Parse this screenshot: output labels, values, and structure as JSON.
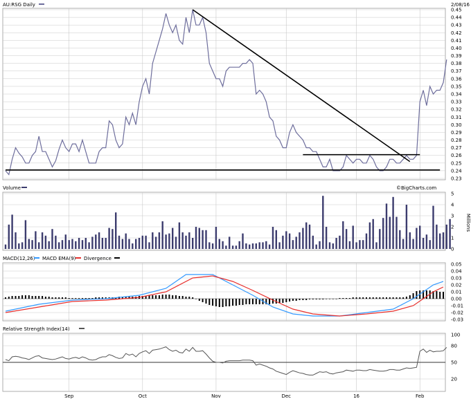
{
  "header": {
    "ticker": "AU:RSG Daily",
    "date": "2/08/16",
    "watermark": "©BigCharts.com"
  },
  "colors": {
    "price": "#6d6d9c",
    "volume_bar": "#3c3c6e",
    "macd": "#3399ff",
    "ema": "#e8302d",
    "divergence": "#000000",
    "rsi": "#555555",
    "trendline": "#000000",
    "grid": "#c8c8c8"
  },
  "x_axis": {
    "months": [
      {
        "label": "Sep",
        "day": 19
      },
      {
        "label": "Oct",
        "day": 41
      },
      {
        "label": "Nov",
        "day": 63
      },
      {
        "label": "Dec",
        "day": 84
      },
      {
        "label": "16",
        "day": 105
      },
      {
        "label": "Feb",
        "day": 124
      }
    ]
  },
  "chart_data": [
    {
      "type": "line",
      "name": "price",
      "title": "AU:RSG Daily",
      "ylim": [
        0.23,
        0.45
      ],
      "yticks": [
        0.23,
        0.24,
        0.25,
        0.26,
        0.27,
        0.28,
        0.29,
        0.3,
        0.31,
        0.32,
        0.33,
        0.34,
        0.35,
        0.36,
        0.37,
        0.38,
        0.39,
        0.4,
        0.41,
        0.42,
        0.43,
        0.44,
        0.45
      ],
      "values": [
        0.24,
        0.235,
        0.255,
        0.27,
        0.263,
        0.258,
        0.25,
        0.25,
        0.26,
        0.265,
        0.285,
        0.265,
        0.265,
        0.255,
        0.245,
        0.253,
        0.268,
        0.28,
        0.27,
        0.265,
        0.275,
        0.275,
        0.265,
        0.28,
        0.265,
        0.25,
        0.25,
        0.25,
        0.265,
        0.27,
        0.27,
        0.305,
        0.3,
        0.28,
        0.27,
        0.275,
        0.31,
        0.3,
        0.315,
        0.3,
        0.33,
        0.35,
        0.36,
        0.34,
        0.38,
        0.395,
        0.41,
        0.425,
        0.445,
        0.43,
        0.42,
        0.43,
        0.41,
        0.405,
        0.44,
        0.42,
        0.45,
        0.43,
        0.43,
        0.44,
        0.42,
        0.38,
        0.37,
        0.36,
        0.36,
        0.35,
        0.37,
        0.375,
        0.375,
        0.375,
        0.375,
        0.38,
        0.38,
        0.385,
        0.38,
        0.34,
        0.345,
        0.34,
        0.33,
        0.31,
        0.305,
        0.285,
        0.28,
        0.27,
        0.27,
        0.29,
        0.3,
        0.29,
        0.285,
        0.28,
        0.27,
        0.27,
        0.265,
        0.265,
        0.255,
        0.245,
        0.245,
        0.255,
        0.24,
        0.24,
        0.24,
        0.245,
        0.26,
        0.255,
        0.25,
        0.255,
        0.255,
        0.25,
        0.25,
        0.26,
        0.255,
        0.245,
        0.24,
        0.24,
        0.245,
        0.255,
        0.255,
        0.25,
        0.25,
        0.255,
        0.26,
        0.255,
        0.255,
        0.26,
        0.33,
        0.345,
        0.325,
        0.35,
        0.34,
        0.345,
        0.345,
        0.355,
        0.385
      ],
      "trendlines": [
        {
          "points": [
            [
              0,
              0.241
            ],
            [
              130,
              0.241
            ]
          ]
        },
        {
          "points": [
            [
              56,
              0.45
            ],
            [
              121,
              0.252
            ]
          ]
        },
        {
          "points": [
            [
              89,
              0.261
            ],
            [
              124,
              0.261
            ]
          ]
        }
      ]
    },
    {
      "type": "bar",
      "name": "volume",
      "title": "Volume",
      "ylabel": "Millions",
      "ylim": [
        0,
        5
      ],
      "yticks": [
        0,
        1,
        2,
        3,
        4,
        5
      ],
      "values": [
        0.4,
        2.2,
        3.1,
        1.5,
        0.5,
        0.6,
        2.6,
        0.9,
        0.8,
        1.6,
        0.6,
        1.5,
        1.2,
        0.7,
        1.8,
        1.2,
        0.6,
        0.8,
        1.3,
        0.8,
        0.9,
        0.7,
        1.0,
        0.8,
        1.0,
        0.6,
        1.1,
        1.3,
        1.5,
        1.0,
        1.0,
        1.9,
        1.8,
        3.3,
        1.2,
        0.9,
        1.4,
        0.9,
        0.5,
        0.9,
        1.0,
        1.2,
        1.2,
        0.6,
        1.5,
        1.1,
        1.5,
        2.5,
        1.3,
        1.4,
        1.9,
        1.1,
        2.4,
        1.5,
        1.2,
        1.5,
        1.0,
        2.0,
        1.9,
        1.7,
        1.7,
        0.6,
        0.5,
        2.0,
        0.9,
        0.7,
        0.3,
        1.1,
        0.3,
        0.3,
        0.7,
        1.4,
        0.5,
        0.4,
        0.5,
        0.5,
        0.6,
        0.6,
        0.7,
        0.4,
        2.0,
        1.7,
        0.6,
        1.2,
        1.6,
        1.4,
        0.8,
        1.1,
        1.5,
        1.9,
        2.4,
        2.2,
        1.2,
        0.4,
        0.7,
        4.8,
        2.0,
        0.6,
        0.5,
        1.0,
        1.2,
        2.5,
        1.8,
        0.7,
        2.1,
        0.6,
        0.8,
        0.8,
        1.4,
        2.4,
        2.7,
        0.6,
        1.8,
        2.8,
        4.1,
        2.9,
        4.7,
        2.9,
        1.7,
        0.9,
        4.0,
        1.5,
        0.9,
        1.9,
        2.1,
        1.0,
        1.3,
        0.8,
        3.9,
        2.2,
        1.4,
        1.5,
        2.2,
        2.7
      ],
      "trendlines": []
    },
    {
      "type": "line",
      "name": "macd",
      "title": "MACD(12,26)",
      "legend": [
        "MACD(12,26)",
        "MACD EMA(9)",
        "Divergence"
      ],
      "ylim": [
        -0.03,
        0.05
      ],
      "yticks": [
        -0.03,
        -0.02,
        -0.01,
        0.0,
        0.01,
        0.02,
        0.03,
        0.04,
        0.05
      ],
      "ytick_labels": [
        "-0.03",
        "-0.02",
        "-0.01",
        "0.00",
        "0.01",
        "0.02",
        "0.03",
        "0.04",
        "0.05"
      ],
      "series": [
        {
          "name": "MACD(12,26)",
          "key": "macd",
          "points": [
            [
              0,
              -0.018
            ],
            [
              10,
              -0.008
            ],
            [
              20,
              -0.002
            ],
            [
              30,
              0.0
            ],
            [
              40,
              0.005
            ],
            [
              48,
              0.015
            ],
            [
              54,
              0.035
            ],
            [
              62,
              0.035
            ],
            [
              68,
              0.02
            ],
            [
              74,
              0.005
            ],
            [
              80,
              -0.012
            ],
            [
              86,
              -0.022
            ],
            [
              92,
              -0.025
            ],
            [
              100,
              -0.025
            ],
            [
              108,
              -0.02
            ],
            [
              116,
              -0.015
            ],
            [
              122,
              0.0
            ],
            [
              128,
              0.02
            ],
            [
              131,
              0.025
            ]
          ]
        },
        {
          "name": "MACD EMA(9)",
          "key": "ema",
          "points": [
            [
              0,
              -0.02
            ],
            [
              10,
              -0.012
            ],
            [
              20,
              -0.004
            ],
            [
              30,
              -0.002
            ],
            [
              40,
              0.002
            ],
            [
              48,
              0.01
            ],
            [
              56,
              0.03
            ],
            [
              62,
              0.033
            ],
            [
              68,
              0.025
            ],
            [
              74,
              0.012
            ],
            [
              80,
              -0.002
            ],
            [
              86,
              -0.015
            ],
            [
              92,
              -0.022
            ],
            [
              100,
              -0.025
            ],
            [
              108,
              -0.022
            ],
            [
              116,
              -0.018
            ],
            [
              122,
              -0.01
            ],
            [
              128,
              0.01
            ],
            [
              131,
              0.017
            ]
          ]
        }
      ],
      "divergence": [
        0.002,
        0.003,
        0.004,
        0.004,
        0.004,
        0.005,
        0.005,
        0.005,
        0.004,
        0.004,
        0.004,
        0.004,
        0.003,
        0.003,
        0.002,
        0.002,
        0.002,
        0.002,
        0.002,
        0.001,
        0.001,
        0.001,
        0.001,
        0.001,
        0.001,
        0.001,
        0.001,
        0.002,
        0.002,
        0.002,
        0.002,
        0.002,
        0.002,
        0.002,
        0.003,
        0.003,
        0.003,
        0.003,
        0.003,
        0.003,
        0.004,
        0.004,
        0.004,
        0.005,
        0.005,
        0.005,
        0.005,
        0.006,
        0.006,
        0.006,
        0.005,
        0.005,
        0.004,
        0.004,
        0.003,
        0.003,
        0.002,
        0.0,
        -0.003,
        -0.005,
        -0.007,
        -0.009,
        -0.01,
        -0.011,
        -0.012,
        -0.012,
        -0.011,
        -0.011,
        -0.01,
        -0.01,
        -0.009,
        -0.009,
        -0.008,
        -0.008,
        -0.008,
        -0.008,
        -0.008,
        -0.008,
        -0.008,
        -0.008,
        -0.007,
        -0.007,
        -0.006,
        -0.006,
        -0.005,
        -0.004,
        -0.003,
        -0.003,
        -0.002,
        -0.002,
        -0.002,
        -0.001,
        -0.001,
        -0.001,
        -0.001,
        -0.001,
        0.0,
        0.0,
        0.0,
        0.0,
        0.001,
        0.001,
        0.001,
        0.001,
        0.002,
        0.002,
        0.002,
        0.002,
        0.002,
        0.002,
        0.002,
        0.002,
        0.002,
        0.002,
        0.002,
        0.002,
        0.002,
        0.002,
        0.002,
        0.002,
        0.003,
        0.005,
        0.008,
        0.011,
        0.012,
        0.012,
        0.012,
        0.012,
        0.011,
        0.011,
        0.01,
        0.01
      ]
    },
    {
      "type": "line",
      "name": "rsi",
      "title": "Relative Strength Index(14)",
      "ylim": [
        0,
        100
      ],
      "yticks": [
        20,
        50,
        80,
        100
      ],
      "reference_line": 50,
      "values": [
        55,
        53,
        60,
        61,
        60,
        58,
        57,
        55,
        58,
        61,
        62,
        58,
        57,
        56,
        55,
        56,
        58,
        60,
        57,
        56,
        58,
        59,
        57,
        60,
        58,
        55,
        54,
        55,
        58,
        60,
        60,
        64,
        62,
        59,
        57,
        58,
        66,
        63,
        65,
        60,
        66,
        69,
        71,
        66,
        72,
        73,
        74,
        76,
        78,
        73,
        70,
        72,
        68,
        67,
        74,
        70,
        77,
        70,
        70,
        71,
        65,
        58,
        52,
        50,
        50,
        49,
        52,
        53,
        53,
        53,
        53,
        54,
        54,
        54,
        53,
        45,
        47,
        45,
        43,
        40,
        38,
        34,
        32,
        30,
        28,
        32,
        35,
        33,
        31,
        30,
        28,
        27,
        27,
        30,
        33,
        32,
        33,
        30,
        29,
        31,
        32,
        33,
        36,
        35,
        34,
        36,
        36,
        35,
        35,
        37,
        36,
        35,
        34,
        34,
        35,
        37,
        37,
        36,
        36,
        38,
        40,
        39,
        40,
        41,
        70,
        74,
        68,
        72,
        69,
        70,
        70,
        71,
        77
      ]
    }
  ]
}
